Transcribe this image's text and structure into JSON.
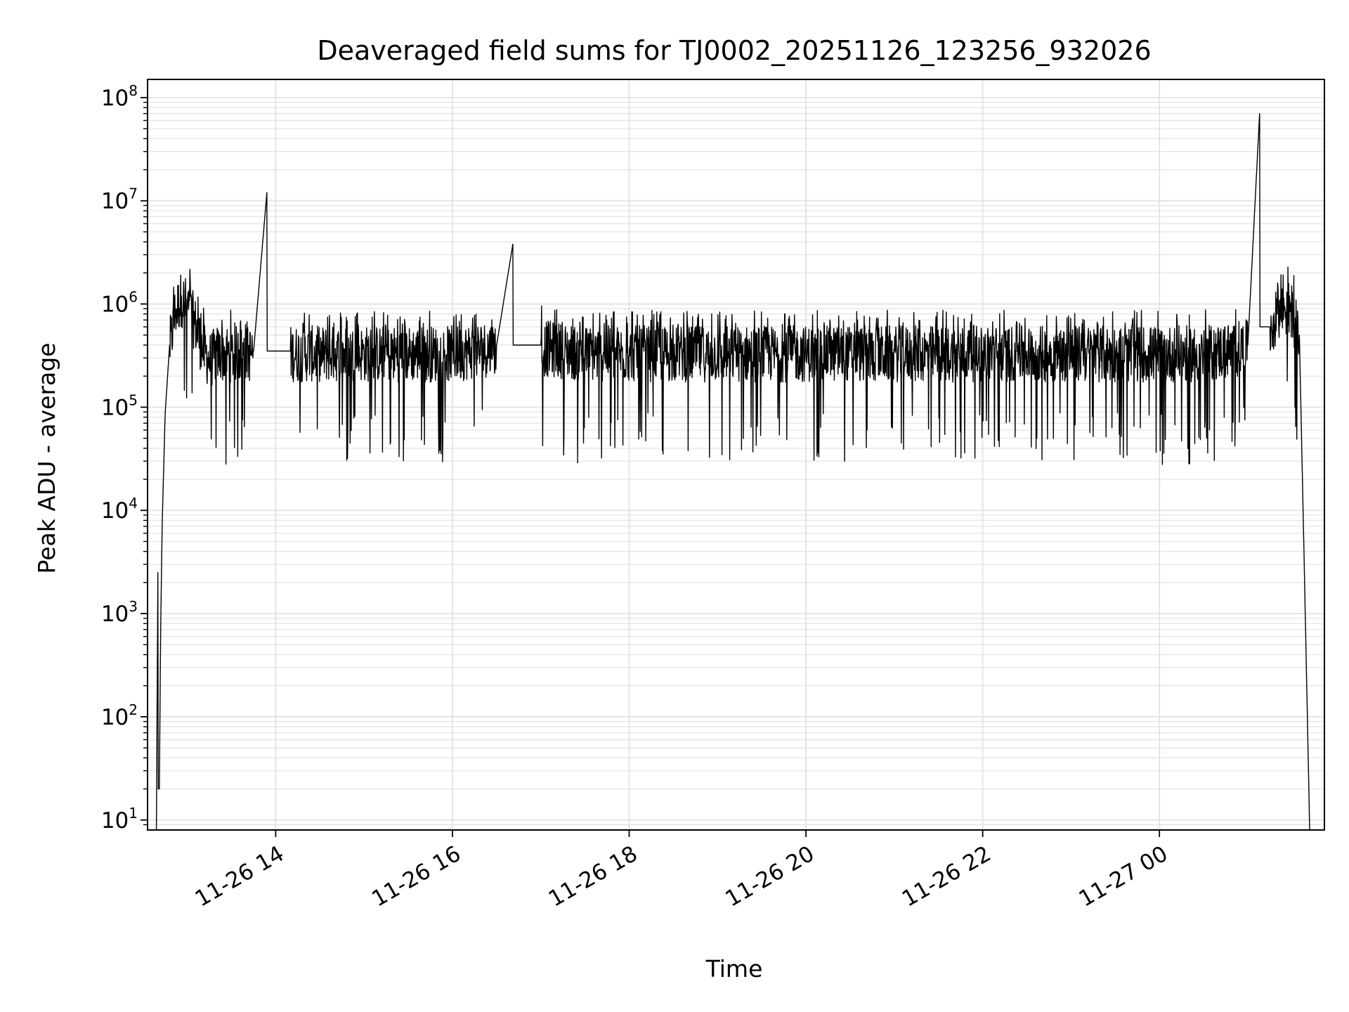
{
  "chart_data": {
    "type": "line",
    "title": "Deaveraged field sums for TJ0002_20251126_123256_932026",
    "xlabel": "Time",
    "ylabel": "Peak ADU - average",
    "yscale": "log",
    "ylim": [
      8,
      150000000
    ],
    "xlim": [
      "2025-11-26T12:33:00",
      "2025-11-27T01:52:00"
    ],
    "grid": true,
    "grid_minor": true,
    "line_color": "#000000",
    "x_ticks": [
      {
        "t": "2025-11-26T14:00:00",
        "label": "11-26 14"
      },
      {
        "t": "2025-11-26T16:00:00",
        "label": "11-26 16"
      },
      {
        "t": "2025-11-26T18:00:00",
        "label": "11-26 18"
      },
      {
        "t": "2025-11-26T20:00:00",
        "label": "11-26 20"
      },
      {
        "t": "2025-11-26T22:00:00",
        "label": "11-26 22"
      },
      {
        "t": "2025-11-27T00:00:00",
        "label": "11-27 00"
      }
    ],
    "y_ticks": [
      {
        "value": 10,
        "base": "10",
        "exp": "1"
      },
      {
        "value": 100,
        "base": "10",
        "exp": "2"
      },
      {
        "value": 1000,
        "base": "10",
        "exp": "3"
      },
      {
        "value": 10000,
        "base": "10",
        "exp": "4"
      },
      {
        "value": 100000,
        "base": "10",
        "exp": "5"
      },
      {
        "value": 1000000,
        "base": "10",
        "exp": "6"
      },
      {
        "value": 10000000,
        "base": "10",
        "exp": "7"
      },
      {
        "value": 100000000,
        "base": "10",
        "exp": "8"
      }
    ],
    "series": [
      {
        "x": [
          "2025-11-26T12:39:00",
          "2025-11-26T12:40:00",
          "2025-11-26T12:41:00",
          "2025-11-26T12:42:00",
          "2025-11-26T12:43:00",
          "2025-11-26T12:45:00",
          "2025-11-26T12:48:00",
          "2025-11-26T12:52:00",
          "2025-11-26T12:56:00",
          "2025-11-26T13:00:00",
          "2025-11-26T13:05:00",
          "2025-11-26T13:10:00",
          "2025-11-26T13:15:00",
          "2025-11-26T13:20:00",
          "2025-11-26T13:30:00",
          "2025-11-26T13:45:00",
          "2025-11-26T13:54:00",
          "2025-11-26T14:10:00",
          "2025-11-26T14:30:00",
          "2025-11-26T15:00:00",
          "2025-11-26T15:30:00",
          "2025-11-26T16:00:00",
          "2025-11-26T16:30:00",
          "2025-11-26T16:41:00",
          "2025-11-26T17:00:00",
          "2025-11-26T17:30:00",
          "2025-11-26T18:00:00",
          "2025-11-26T18:30:00",
          "2025-11-26T19:00:00",
          "2025-11-26T19:30:00",
          "2025-11-26T20:00:00",
          "2025-11-26T20:30:00",
          "2025-11-26T21:00:00",
          "2025-11-26T21:30:00",
          "2025-11-26T22:00:00",
          "2025-11-26T22:30:00",
          "2025-11-26T23:00:00",
          "2025-11-26T23:30:00",
          "2025-11-27T00:00:00",
          "2025-11-27T00:30:00",
          "2025-11-27T01:00:00",
          "2025-11-27T01:08:00",
          "2025-11-27T01:15:00",
          "2025-11-27T01:20:00",
          "2025-11-27T01:25:00",
          "2025-11-27T01:30:00",
          "2025-11-27T01:35:00",
          "2025-11-27T01:39:00",
          "2025-11-27T01:42:00"
        ],
        "y": [
          8,
          2500,
          20,
          900,
          8000,
          90000,
          400000,
          900000,
          1200000,
          1000000,
          700000,
          400000,
          300000,
          350000,
          350000,
          350000,
          12000000,
          350000,
          350000,
          350000,
          350000,
          350000,
          400000,
          3800000,
          400000,
          350000,
          350000,
          350000,
          350000,
          350000,
          350000,
          350000,
          350000,
          350000,
          350000,
          350000,
          350000,
          350000,
          350000,
          350000,
          400000,
          70000000,
          600000,
          800000,
          950000,
          900000,
          500000,
          1000,
          8
        ]
      }
    ]
  }
}
